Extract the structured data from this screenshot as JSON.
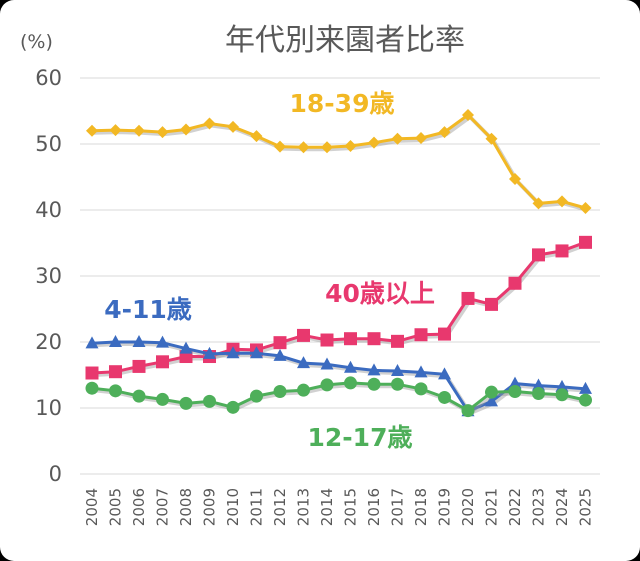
{
  "chart_data": {
    "type": "line",
    "title": "年代別来園者比率",
    "ylabel": "(%)",
    "xlabel": "",
    "ylim": [
      0,
      60
    ],
    "yticks": [
      0,
      10,
      20,
      30,
      40,
      50,
      60
    ],
    "grid": true,
    "x": [
      "2004",
      "2005",
      "2006",
      "2007",
      "2008",
      "2009",
      "2010",
      "2011",
      "2012",
      "2013",
      "2014",
      "2015",
      "2016",
      "2017",
      "2018",
      "2019",
      "2020",
      "2021",
      "2022",
      "2023",
      "2024",
      "2025"
    ],
    "series": [
      {
        "name": "18-39歳",
        "color": "#F2B824",
        "marker": "diamond",
        "values": [
          52.0,
          52.1,
          52.0,
          51.8,
          52.2,
          53.1,
          52.6,
          51.2,
          49.6,
          49.5,
          49.5,
          49.7,
          50.2,
          50.8,
          50.9,
          51.8,
          54.4,
          50.8,
          44.7,
          41.0,
          41.3,
          40.3
        ]
      },
      {
        "name": "40歳以上",
        "color": "#E8386E",
        "marker": "square",
        "values": [
          15.3,
          15.5,
          16.3,
          17.0,
          17.8,
          17.8,
          18.9,
          18.8,
          19.9,
          21.0,
          20.3,
          20.5,
          20.5,
          20.1,
          21.1,
          21.2,
          26.6,
          25.7,
          28.9,
          33.2,
          33.8,
          35.1
        ]
      },
      {
        "name": "4-11歳",
        "color": "#3B6BC0",
        "marker": "triangle",
        "values": [
          19.8,
          20.0,
          20.0,
          19.9,
          19.0,
          18.2,
          18.3,
          18.3,
          17.9,
          16.8,
          16.6,
          16.1,
          15.7,
          15.6,
          15.4,
          15.1,
          9.5,
          11.0,
          13.7,
          13.4,
          13.2,
          12.9
        ]
      },
      {
        "name": "12-17歳",
        "color": "#4EAF5A",
        "marker": "circle",
        "values": [
          13.0,
          12.6,
          11.8,
          11.3,
          10.7,
          11.0,
          10.1,
          11.8,
          12.5,
          12.7,
          13.5,
          13.8,
          13.6,
          13.6,
          12.9,
          11.6,
          9.6,
          12.4,
          12.5,
          12.2,
          12.0,
          11.2
        ]
      }
    ]
  }
}
